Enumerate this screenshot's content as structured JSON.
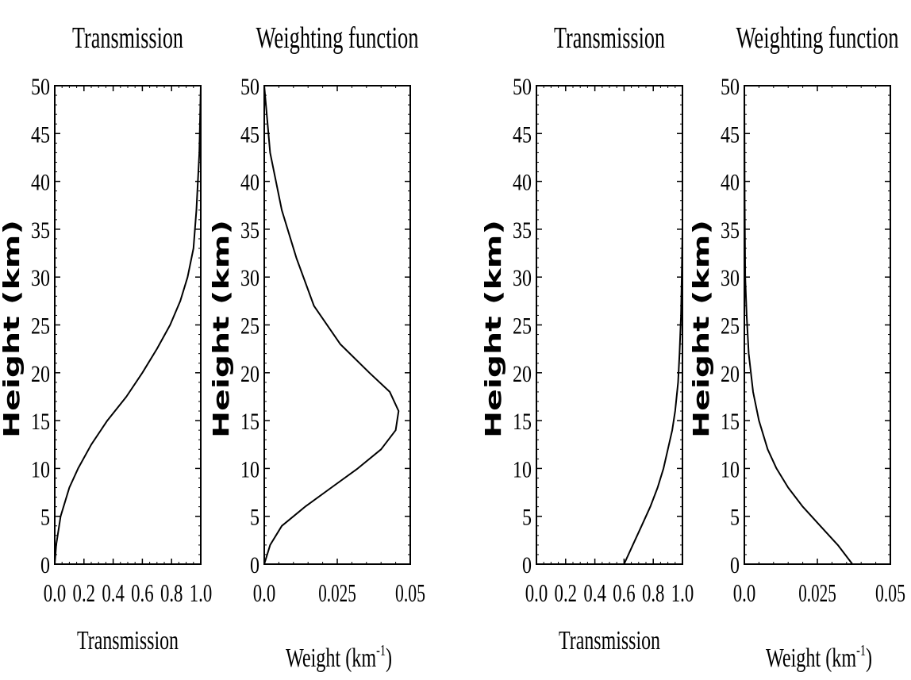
{
  "chart_data": [
    {
      "type": "line",
      "title": "Transmission",
      "xlabel": "Transmission",
      "ylabel": "Height (km)",
      "xlim": [
        0,
        1.0
      ],
      "ylim": [
        0,
        50
      ],
      "xticks": [
        0.0,
        0.2,
        0.4,
        0.6,
        0.8,
        1.0
      ],
      "xtick_labels": [
        "0.0",
        "0.2",
        "0.4",
        "0.6",
        "0.8",
        "1.0"
      ],
      "yticks": [
        0,
        5,
        10,
        15,
        20,
        25,
        30,
        35,
        40,
        45,
        50
      ],
      "ytick_labels": [
        "0",
        "5",
        "10",
        "15",
        "20",
        "25",
        "30",
        "35",
        "40",
        "45",
        "50"
      ],
      "series": [
        {
          "x": [
            0.0,
            0.01,
            0.04,
            0.1,
            0.16,
            0.25,
            0.36,
            0.49,
            0.6,
            0.7,
            0.79,
            0.86,
            0.91,
            0.95,
            0.97,
            0.99,
            1.0
          ],
          "y": [
            0,
            2,
            5,
            8,
            10,
            12.5,
            15,
            17.5,
            20,
            22.5,
            25,
            27.5,
            30,
            33,
            37,
            43,
            50
          ]
        }
      ]
    },
    {
      "type": "line",
      "title": "Weighting function",
      "xlabel": "Weight (km",
      "xlabel_sup": "-1",
      "xlabel_tail": ")",
      "ylabel": "Height (km)",
      "xlim": [
        0,
        0.05
      ],
      "ylim": [
        0,
        50
      ],
      "xticks": [
        0.0,
        0.025,
        0.05
      ],
      "xtick_labels": [
        "0.0",
        "0.025",
        "0.05"
      ],
      "yticks": [
        0,
        5,
        10,
        15,
        20,
        25,
        30,
        35,
        40,
        45,
        50
      ],
      "ytick_labels": [
        "0",
        "5",
        "10",
        "15",
        "20",
        "25",
        "30",
        "35",
        "40",
        "45",
        "50"
      ],
      "series": [
        {
          "x": [
            0.0,
            0.002,
            0.006,
            0.014,
            0.023,
            0.032,
            0.04,
            0.045,
            0.046,
            0.043,
            0.036,
            0.026,
            0.017,
            0.011,
            0.006,
            0.002,
            0.0
          ],
          "y": [
            0,
            2,
            4,
            6,
            8,
            10,
            12,
            14,
            16,
            18,
            20,
            23,
            27,
            32,
            37,
            43,
            50
          ]
        }
      ]
    },
    {
      "type": "line",
      "title": "Transmission",
      "xlabel": "Transmission",
      "ylabel": "Height (km)",
      "xlim": [
        0,
        1.0
      ],
      "ylim": [
        0,
        50
      ],
      "xticks": [
        0.0,
        0.2,
        0.4,
        0.6,
        0.8,
        1.0
      ],
      "xtick_labels": [
        "0.0",
        "0.2",
        "0.4",
        "0.6",
        "0.8",
        "1.0"
      ],
      "yticks": [
        0,
        5,
        10,
        15,
        20,
        25,
        30,
        35,
        40,
        45,
        50
      ],
      "ytick_labels": [
        "0",
        "5",
        "10",
        "15",
        "20",
        "25",
        "30",
        "35",
        "40",
        "45",
        "50"
      ],
      "series": [
        {
          "x": [
            0.6,
            0.66,
            0.72,
            0.78,
            0.83,
            0.87,
            0.9,
            0.93,
            0.95,
            0.97,
            0.98,
            0.99,
            0.995,
            1.0
          ],
          "y": [
            0,
            2,
            4,
            6,
            8,
            10,
            12,
            14,
            16,
            19,
            22,
            26,
            30,
            35
          ]
        }
      ]
    },
    {
      "type": "line",
      "title": "Weighting function",
      "xlabel": "Weight (km",
      "xlabel_sup": "-1",
      "xlabel_tail": ")",
      "ylabel": "Height (km)",
      "xlim": [
        0,
        0.05
      ],
      "ylim": [
        0,
        50
      ],
      "xticks": [
        0.0,
        0.025,
        0.05
      ],
      "xtick_labels": [
        "0.0",
        "0.025",
        "0.05"
      ],
      "yticks": [
        0,
        5,
        10,
        15,
        20,
        25,
        30,
        35,
        40,
        45,
        50
      ],
      "ytick_labels": [
        "0",
        "5",
        "10",
        "15",
        "20",
        "25",
        "30",
        "35",
        "40",
        "45",
        "50"
      ],
      "series": [
        {
          "x": [
            0.037,
            0.032,
            0.026,
            0.02,
            0.015,
            0.011,
            0.008,
            0.005,
            0.003,
            0.0015,
            0.0008,
            0.0003,
            0.0001,
            0.0
          ],
          "y": [
            0,
            2,
            4,
            6,
            8,
            10,
            12,
            15,
            18,
            22,
            26,
            30,
            38,
            50
          ]
        }
      ]
    }
  ]
}
